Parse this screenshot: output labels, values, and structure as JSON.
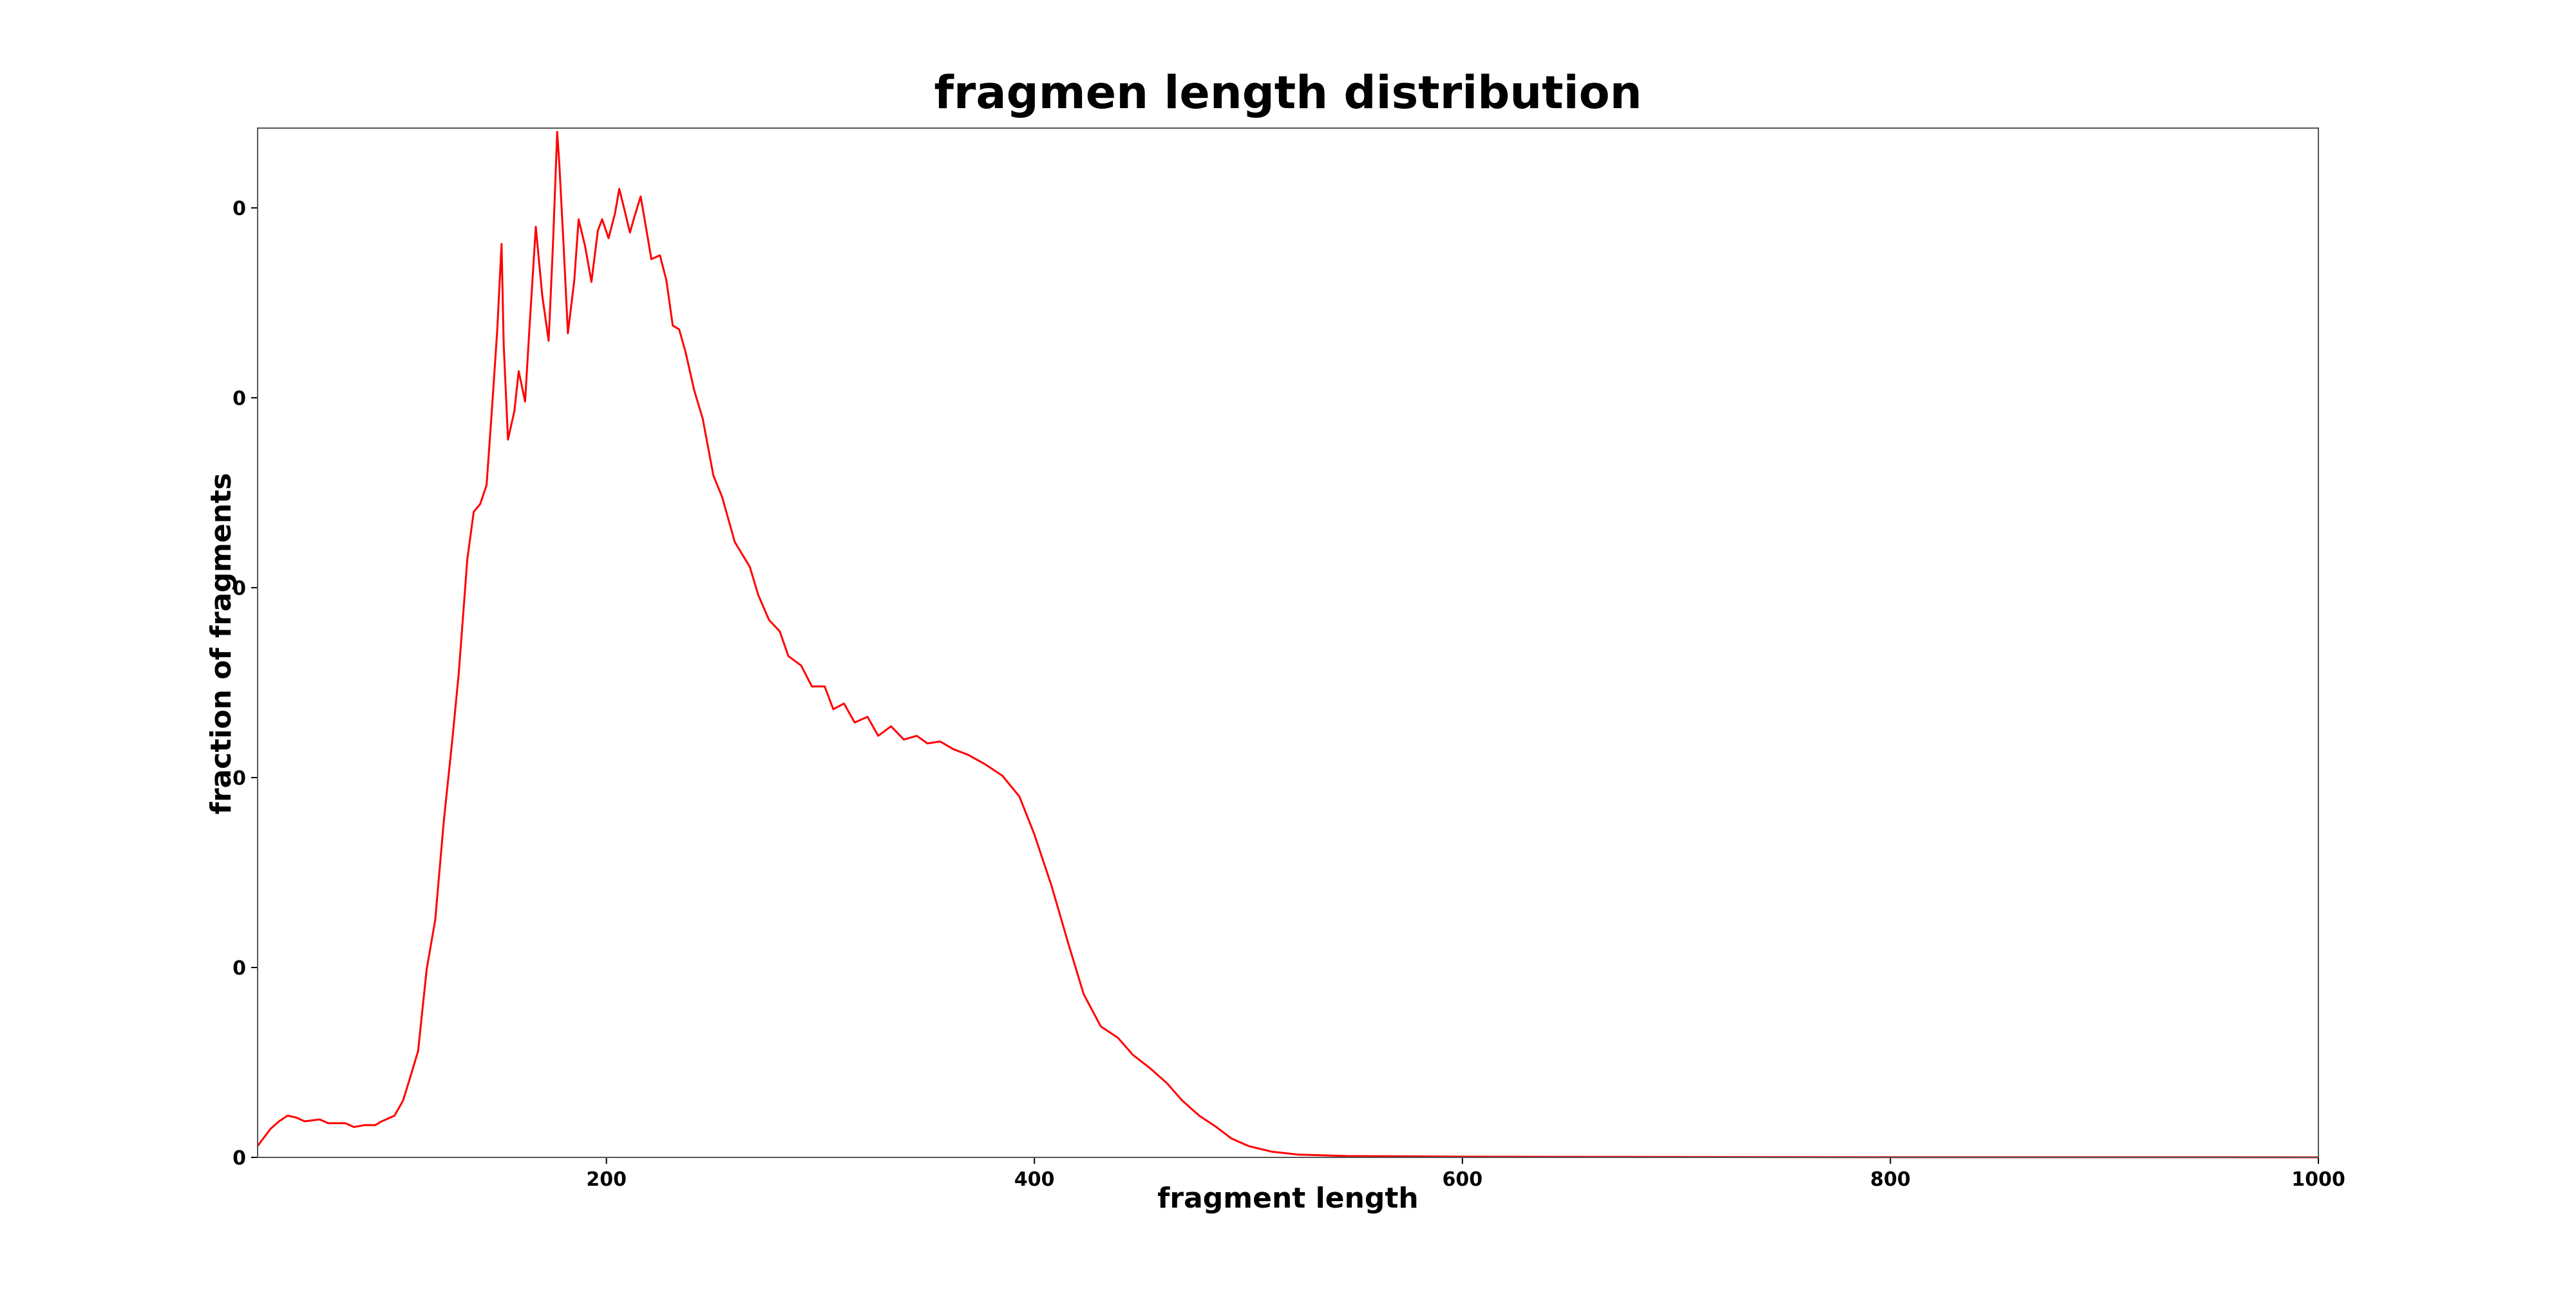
{
  "chart_data": {
    "type": "line",
    "title": "fragmen length distribution",
    "xlabel": "fragment length",
    "ylabel": "fraction of fragments",
    "xlim": [
      37,
      1000
    ],
    "ylim": [
      0,
      0.00542
    ],
    "xticks": [
      200,
      400,
      600,
      800,
      1000
    ],
    "yticks": [
      0,
      {
        "value": 0.001,
        "label": "0"
      },
      {
        "value": 0.002,
        "label": "0"
      },
      {
        "value": 0.003,
        "label": "0"
      },
      {
        "value": 0.004,
        "label": "0"
      },
      {
        "value": 0.005,
        "label": "0"
      }
    ],
    "grid": false,
    "x": [
      37,
      43,
      47,
      51,
      55,
      59,
      66,
      70,
      78,
      82,
      87,
      92,
      95,
      101,
      105,
      108,
      112,
      116,
      120,
      124,
      128,
      131,
      135,
      138,
      141,
      144,
      147,
      149,
      151,
      152,
      154,
      157,
      159,
      162,
      164,
      167,
      170,
      173,
      175,
      177,
      178,
      180,
      182,
      185,
      187,
      190,
      193,
      196,
      198,
      201,
      204,
      206,
      208,
      211,
      213,
      216,
      218,
      221,
      225,
      228,
      231,
      234,
      237,
      241,
      245,
      250,
      254,
      260,
      267,
      271,
      276,
      281,
      285,
      291,
      296,
      302,
      306,
      311,
      316,
      322,
      327,
      333,
      339,
      345,
      350,
      356,
      362,
      369,
      377,
      385,
      393,
      400,
      408,
      416,
      423,
      431,
      439,
      446,
      454,
      462,
      469,
      477,
      485,
      492,
      500,
      511,
      523,
      546,
      600,
      700,
      800,
      1000
    ],
    "series": [
      {
        "name": "fragment length",
        "color": "#ff0000",
        "values": [
          6e-05,
          0.00015,
          0.00019,
          0.00022,
          0.00021,
          0.00019,
          0.0002,
          0.00018,
          0.00018,
          0.00016,
          0.00017,
          0.00017,
          0.00019,
          0.00022,
          0.0003,
          0.00041,
          0.00056,
          0.00099,
          0.00125,
          0.00177,
          0.0022,
          0.00255,
          0.00315,
          0.0034,
          0.00344,
          0.00354,
          0.00402,
          0.00436,
          0.00481,
          0.00428,
          0.00378,
          0.00393,
          0.00414,
          0.00398,
          0.00436,
          0.0049,
          0.00454,
          0.0043,
          0.0048,
          0.0054,
          0.00523,
          0.0048,
          0.00434,
          0.00462,
          0.00494,
          0.0048,
          0.00461,
          0.00488,
          0.00494,
          0.00484,
          0.00497,
          0.0051,
          0.00501,
          0.00487,
          0.00495,
          0.00506,
          0.00493,
          0.00473,
          0.00475,
          0.00462,
          0.00438,
          0.00436,
          0.00424,
          0.00404,
          0.00389,
          0.00359,
          0.00348,
          0.00324,
          0.00311,
          0.00296,
          0.00283,
          0.00277,
          0.00264,
          0.00259,
          0.00248,
          0.00248,
          0.00236,
          0.00239,
          0.00229,
          0.00232,
          0.00222,
          0.00227,
          0.0022,
          0.00222,
          0.00218,
          0.00219,
          0.00215,
          0.00212,
          0.00207,
          0.00201,
          0.0019,
          0.0017,
          0.00143,
          0.00112,
          0.00086,
          0.00069,
          0.00063,
          0.00054,
          0.00047,
          0.00039,
          0.0003,
          0.00022,
          0.00016,
          0.0001,
          6e-05,
          3e-05,
          1.5e-05,
          7e-06,
          4e-06,
          2e-06,
          1e-06,
          5e-07
        ]
      }
    ]
  }
}
